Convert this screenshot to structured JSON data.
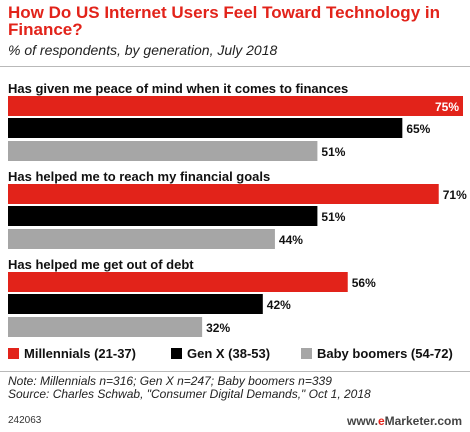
{
  "title": "How Do US Internet Users Feel Toward Technology in Finance?",
  "subtitle": "% of respondents, by generation, July 2018",
  "chart_data": {
    "type": "bar",
    "orientation": "horizontal",
    "categories": [
      "Has given me peace of mind when it comes to finances",
      "Has helped me to reach my financial goals",
      "Has helped me get out of debt"
    ],
    "series": [
      {
        "name": "Millennials (21-37)",
        "color": "#e2231a",
        "values": [
          75,
          71,
          56
        ]
      },
      {
        "name": "Gen X (38-53)",
        "color": "#000000",
        "values": [
          65,
          51,
          42
        ]
      },
      {
        "name": "Baby boomers (54-72)",
        "color": "#a6a6a6",
        "values": [
          51,
          44,
          32
        ]
      }
    ],
    "value_suffix": "%",
    "xlim": [
      0,
      75
    ],
    "legend_position": "bottom",
    "grid": false
  },
  "legend": {
    "millennials": "Millennials (21-37)",
    "genx": "Gen X (38-53)",
    "boomers": "Baby boomers (54-72)"
  },
  "notes": {
    "note": "Note: Millennials n=316; Gen X n=247; Baby boomers n=339",
    "source": "Source: Charles Schwab, \"Consumer Digital Demands,\" Oct 1, 2018"
  },
  "figure_id": "242063",
  "brand": {
    "prefix": "www.",
    "e": "e",
    "rest": "Marketer.com"
  }
}
